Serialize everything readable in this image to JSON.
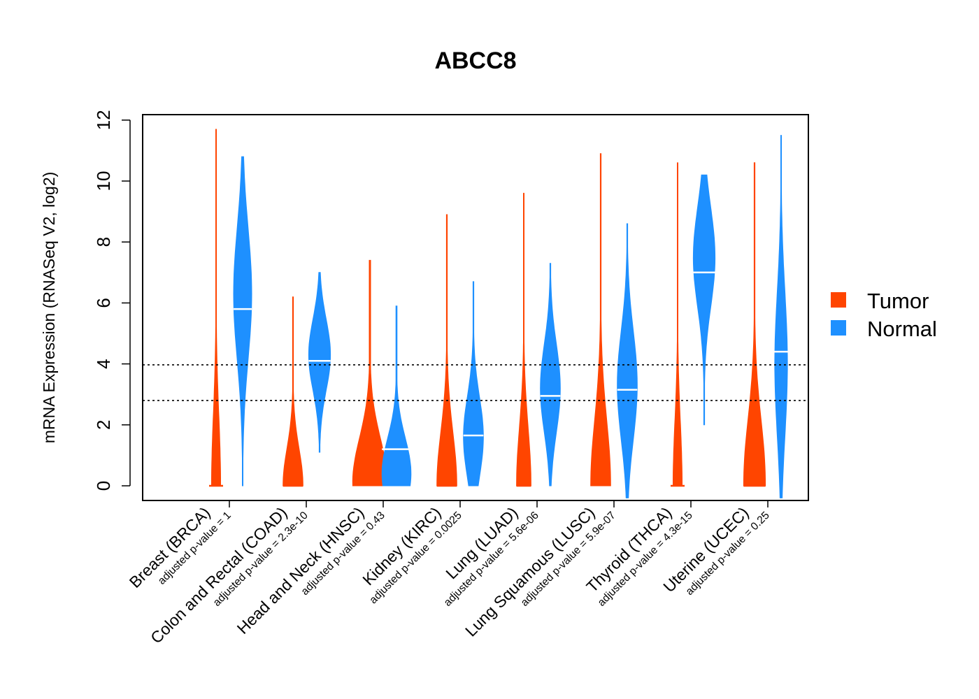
{
  "chart_data": {
    "type": "violin",
    "title": "ABCC8",
    "xlabel": "",
    "ylabel": "mRNA Expression (RNASeq V2, log2)",
    "ylim": [
      -0.5,
      12.2
    ],
    "yticks": [
      0,
      2,
      4,
      6,
      8,
      10,
      12
    ],
    "reference_lines": [
      2.8,
      3.97
    ],
    "series": [
      {
        "name": "Tumor",
        "color": "#FF4500"
      },
      {
        "name": "Normal",
        "color": "#1E90FF"
      }
    ],
    "legend": {
      "position": "right",
      "entries": [
        "Tumor",
        "Normal"
      ]
    },
    "groups": [
      {
        "category": "Breast (BRCA)",
        "pvalue": "adjusted p-value = 1",
        "tumor": {
          "min": 0,
          "max": 11.7,
          "median": 0,
          "peak": 0,
          "width": 0.25
        },
        "normal": {
          "min": 0,
          "max": 10.8,
          "median": 5.8,
          "peak": 6.3,
          "width": 0.5
        }
      },
      {
        "category": "Colon and Rectal (COAD)",
        "pvalue": "adjusted p-value = 2.3e-10",
        "tumor": {
          "min": 0,
          "max": 6.2,
          "median": 0,
          "peak": 0,
          "width": 0.55
        },
        "normal": {
          "min": 1.1,
          "max": 7.0,
          "median": 4.1,
          "peak": 4.3,
          "width": 0.6
        }
      },
      {
        "category": "Head and Neck (HNSC)",
        "pvalue": "adjusted p-value = 0.43",
        "tumor": {
          "min": 0,
          "max": 7.4,
          "median": 0.15,
          "peak": 0.1,
          "width": 0.95
        },
        "normal": {
          "min": 0,
          "max": 5.9,
          "median": 1.2,
          "peak": 0.4,
          "width": 0.8
        }
      },
      {
        "category": "Kidney (KIRC)",
        "pvalue": "adjusted p-value = 0.0025",
        "tumor": {
          "min": 0,
          "max": 8.9,
          "median": 0,
          "peak": 0,
          "width": 0.55
        },
        "normal": {
          "min": 0,
          "max": 6.7,
          "median": 1.65,
          "peak": 1.6,
          "width": 0.55
        }
      },
      {
        "category": "Lung (LUAD)",
        "pvalue": "adjusted p-value = 5.6e-06",
        "tumor": {
          "min": 0,
          "max": 9.6,
          "median": 0,
          "peak": 0,
          "width": 0.4
        },
        "normal": {
          "min": 0,
          "max": 7.3,
          "median": 2.95,
          "peak": 3.2,
          "width": 0.55
        }
      },
      {
        "category": "Lung Squamous (LUSC)",
        "pvalue": "adjusted p-value = 5.9e-07",
        "tumor": {
          "min": 0,
          "max": 10.9,
          "median": 0.05,
          "peak": 0,
          "width": 0.55
        },
        "normal": {
          "min": -0.4,
          "max": 8.6,
          "median": 3.15,
          "peak": 3.3,
          "width": 0.55
        }
      },
      {
        "category": "Thyroid (THCA)",
        "pvalue": "adjusted p-value = 4.3e-15",
        "tumor": {
          "min": 0,
          "max": 10.6,
          "median": 0,
          "peak": 0,
          "width": 0.25
        },
        "normal": {
          "min": 2.0,
          "max": 10.2,
          "median": 7.0,
          "peak": 7.5,
          "width": 0.6
        }
      },
      {
        "category": "Uterine (UCEC)",
        "pvalue": "adjusted p-value = 0.25",
        "tumor": {
          "min": 0,
          "max": 10.6,
          "median": 0,
          "peak": 0.05,
          "width": 0.6
        },
        "normal": {
          "min": -0.4,
          "max": 11.5,
          "median": 4.4,
          "peak": 4.0,
          "width": 0.35
        }
      }
    ]
  }
}
